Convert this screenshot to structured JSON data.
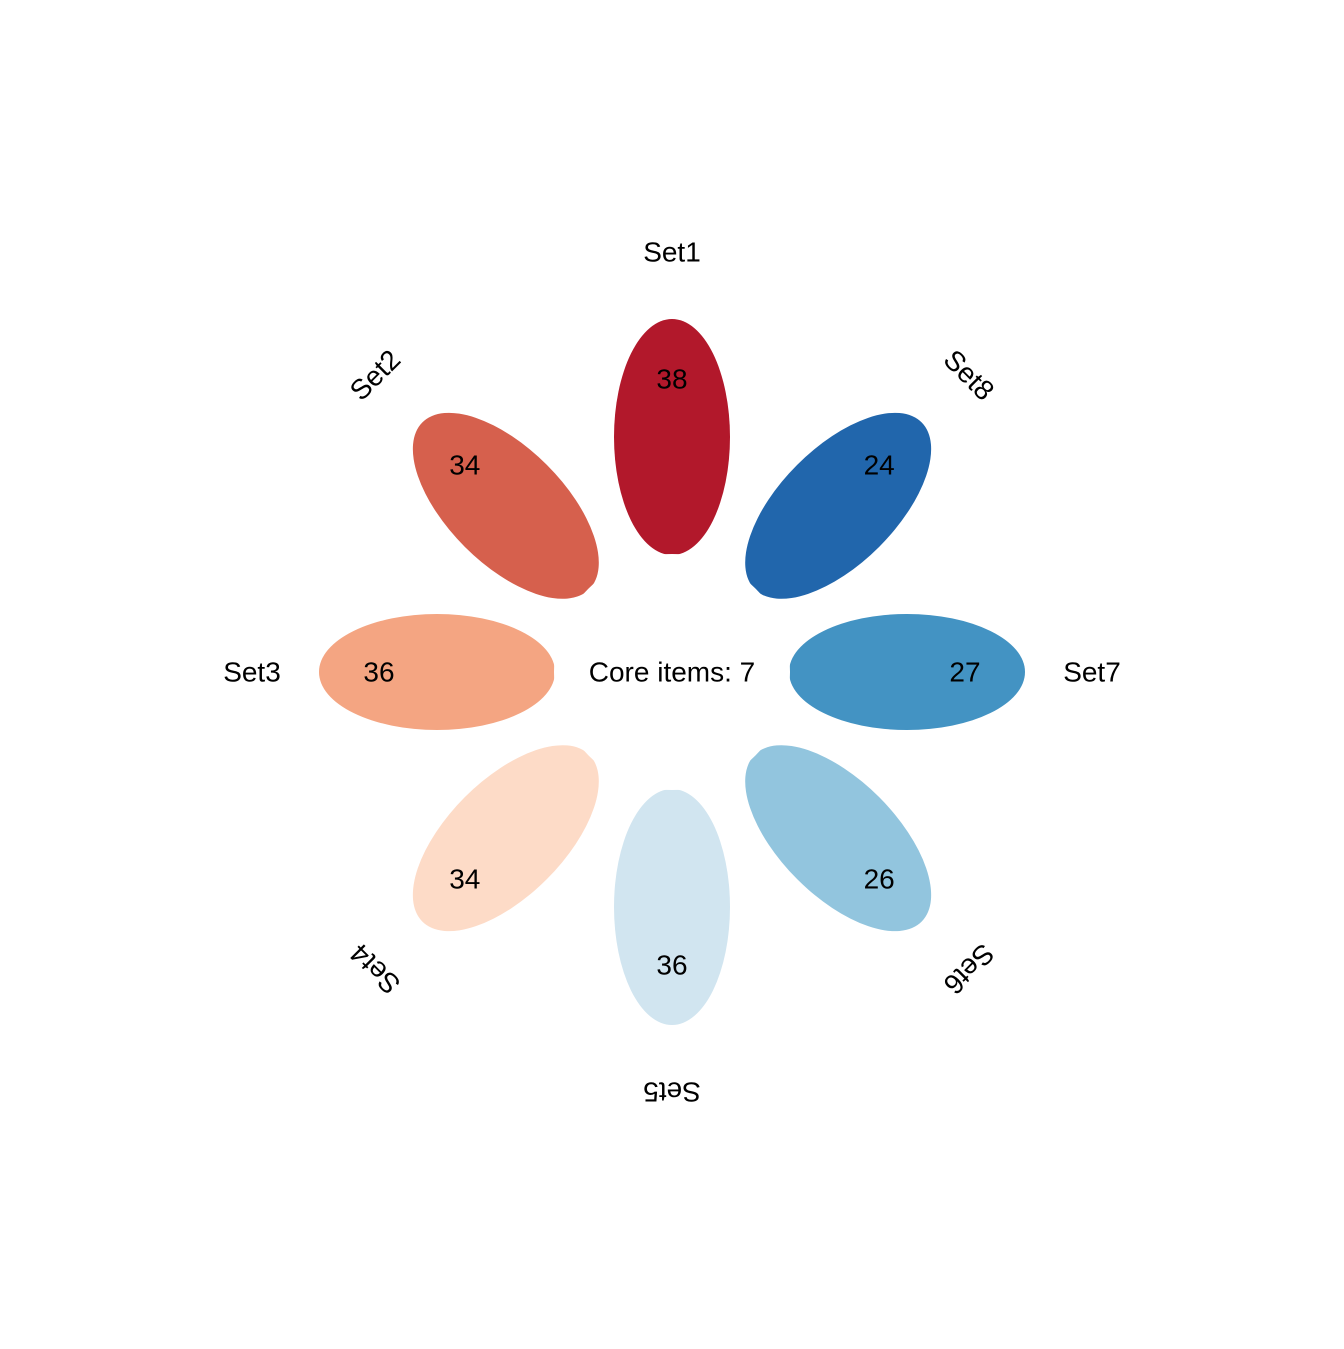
{
  "chart_data": {
    "type": "flower",
    "core": {
      "label": "Core items: 7",
      "value": 7
    },
    "petals": [
      {
        "name": "Set1",
        "count": "38",
        "value": 38,
        "color": "#B2182B"
      },
      {
        "name": "Set2",
        "count": "34",
        "value": 34,
        "color": "#D6604D"
      },
      {
        "name": "Set3",
        "count": "36",
        "value": 36,
        "color": "#F4A582"
      },
      {
        "name": "Set4",
        "count": "34",
        "value": 34,
        "color": "#FDDBC7"
      },
      {
        "name": "Set5",
        "count": "36",
        "value": 36,
        "color": "#D1E5F0"
      },
      {
        "name": "Set6",
        "count": "26",
        "value": 26,
        "color": "#92C5DE"
      },
      {
        "name": "Set7",
        "count": "27",
        "value": 27,
        "color": "#4393C3"
      },
      {
        "name": "Set8",
        "count": "24",
        "value": 24,
        "color": "#2166AC"
      }
    ]
  }
}
